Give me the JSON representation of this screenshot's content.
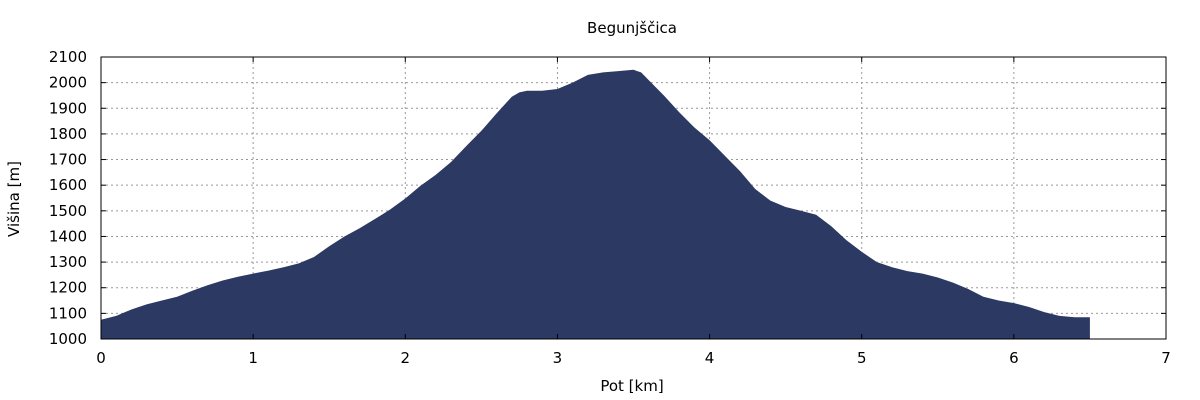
{
  "chart_data": {
    "type": "area",
    "title": "Begunjščica",
    "xlabel": "Pot [km]",
    "ylabel": "Višina [m]",
    "xlim": [
      0,
      7
    ],
    "ylim": [
      1000,
      2100
    ],
    "xticks": [
      0,
      1,
      2,
      3,
      4,
      5,
      6,
      7
    ],
    "yticks": [
      1000,
      1100,
      1200,
      1300,
      1400,
      1500,
      1600,
      1700,
      1800,
      1900,
      2000,
      2100
    ],
    "grid": true,
    "fill_color": "#2b3963",
    "series": [
      {
        "x": [
          0,
          0.1,
          0.2,
          0.3,
          0.4,
          0.5,
          0.6,
          0.7,
          0.8,
          0.9,
          1.0,
          1.1,
          1.2,
          1.3,
          1.4,
          1.5,
          1.6,
          1.7,
          1.8,
          1.9,
          2.0,
          2.1,
          2.2,
          2.3,
          2.4,
          2.5,
          2.6,
          2.7,
          2.75,
          2.8,
          2.9,
          3.0,
          3.1,
          3.2,
          3.3,
          3.4,
          3.5,
          3.55,
          3.6,
          3.7,
          3.8,
          3.9,
          4.0,
          4.1,
          4.2,
          4.3,
          4.4,
          4.5,
          4.6,
          4.7,
          4.8,
          4.9,
          5.0,
          5.1,
          5.2,
          5.3,
          5.4,
          5.5,
          5.6,
          5.7,
          5.8,
          5.9,
          6.0,
          6.1,
          6.2,
          6.3,
          6.4,
          6.5
        ],
        "y": [
          1075,
          1090,
          1115,
          1135,
          1150,
          1165,
          1188,
          1210,
          1228,
          1243,
          1255,
          1267,
          1280,
          1295,
          1320,
          1362,
          1400,
          1432,
          1468,
          1505,
          1548,
          1598,
          1640,
          1690,
          1752,
          1812,
          1880,
          1945,
          1962,
          1968,
          1968,
          1975,
          2000,
          2030,
          2040,
          2045,
          2050,
          2040,
          2010,
          1950,
          1885,
          1825,
          1775,
          1715,
          1655,
          1585,
          1540,
          1515,
          1500,
          1485,
          1440,
          1385,
          1340,
          1300,
          1280,
          1265,
          1255,
          1240,
          1220,
          1195,
          1165,
          1150,
          1140,
          1125,
          1105,
          1090,
          1085,
          1085
        ]
      }
    ]
  }
}
